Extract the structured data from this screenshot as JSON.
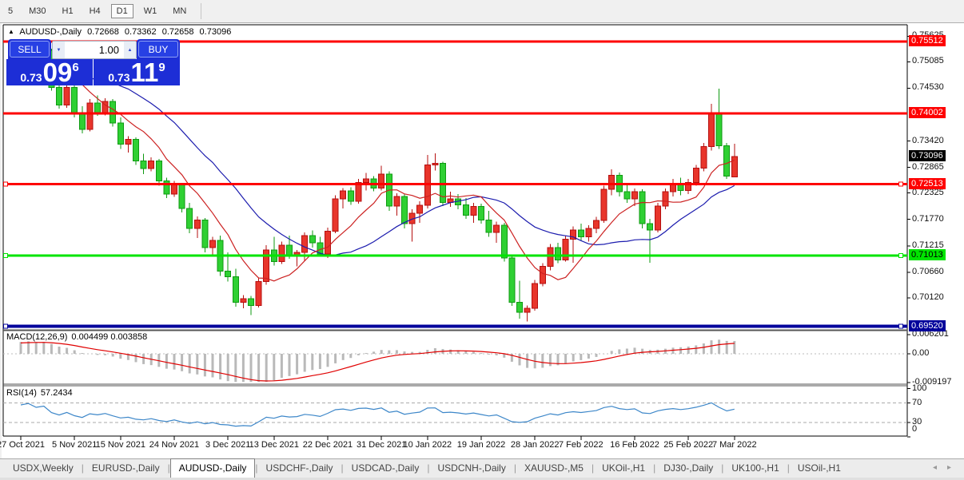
{
  "colors": {
    "bull": "#e8352b",
    "bull_border": "#b50f0f",
    "bear": "#2fd033",
    "bear_border": "#0f9a12",
    "ma_fast": "#cc2222",
    "ma_slow": "#1c1cae",
    "macd_hist": "#b9b9b9",
    "macd_signal": "#e00000",
    "rsi_line": "#3d87c9",
    "line_red": "#fe0000",
    "line_green": "#00e400",
    "line_navy": "#00009b",
    "panel_blue": "#1d2ed6"
  },
  "toolbar": {
    "timeframes": [
      "5",
      "M30",
      "H1",
      "H4",
      "D1",
      "W1",
      "MN"
    ],
    "active_timeframe": "D1"
  },
  "title": {
    "collapse_arrow": "▲",
    "symbol": "AUDUSD-,Daily",
    "open": "0.72668",
    "high": "0.73362",
    "low": "0.72658",
    "close": "0.73096"
  },
  "trade_panel": {
    "sell_label": "SELL",
    "buy_label": "BUY",
    "volume": "1.00",
    "spinner_down": "▼",
    "spinner_up": "▲",
    "sell_price": {
      "prefix": "0.73",
      "big": "09",
      "sup": "6"
    },
    "buy_price": {
      "prefix": "0.73",
      "big": "11",
      "sup": "9"
    }
  },
  "price_axis": {
    "labels": [
      {
        "value": 0.75625,
        "text": "0.75625"
      },
      {
        "value": 0.75085,
        "text": "0.75085"
      },
      {
        "value": 0.7453,
        "text": "0.74530"
      },
      {
        "value": 0.7342,
        "text": "0.73420"
      },
      {
        "value": 0.72865,
        "text": "0.72865"
      },
      {
        "value": 0.72325,
        "text": "0.72325"
      },
      {
        "value": 0.7177,
        "text": "0.71770"
      },
      {
        "value": 0.71215,
        "text": "0.71215"
      },
      {
        "value": 0.7066,
        "text": "0.70660"
      },
      {
        "value": 0.7012,
        "text": "0.70120"
      }
    ],
    "badges": [
      {
        "value": 0.75512,
        "text": "0.75512",
        "bg": "#fe0000",
        "fg": "#ffffff"
      },
      {
        "value": 0.74002,
        "text": "0.74002",
        "bg": "#fe0000",
        "fg": "#ffffff"
      },
      {
        "value": 0.73096,
        "text": "0.73096",
        "bg": "#000000",
        "fg": "#ffffff"
      },
      {
        "value": 0.72513,
        "text": "0.72513",
        "bg": "#fe0000",
        "fg": "#ffffff"
      },
      {
        "value": 0.71013,
        "text": "0.71013",
        "bg": "#00e400",
        "fg": "#000000"
      },
      {
        "value": 0.6952,
        "text": "0.69520",
        "bg": "#00009b",
        "fg": "#ffffff"
      }
    ]
  },
  "hlines": [
    {
      "value": 0.75512,
      "color": "#fe0000",
      "width": 3,
      "handles": false
    },
    {
      "value": 0.74002,
      "color": "#fe0000",
      "width": 3,
      "handles": false
    },
    {
      "value": 0.72513,
      "color": "#fe0000",
      "width": 3,
      "handles": true
    },
    {
      "value": 0.71013,
      "color": "#00e400",
      "width": 3,
      "handles": true
    },
    {
      "value": 0.6952,
      "color": "#00009b",
      "width": 4,
      "handles": true
    }
  ],
  "macd_panel": {
    "label": "MACD(12,26,9)",
    "values": "0.004499 0.003858",
    "params": {
      "fast": 12,
      "slow": 26,
      "signal": 9
    },
    "axis": [
      {
        "value": 0.006201,
        "text": "0.006201"
      },
      {
        "value": 0,
        "text": "0.00"
      },
      {
        "value": -0.009197,
        "text": "-0.009197"
      }
    ]
  },
  "rsi_panel": {
    "label": "RSI(14)",
    "value": "57.2434",
    "period": 14,
    "levels": [
      70,
      30
    ],
    "axis": [
      {
        "value": 100,
        "text": "100"
      },
      {
        "value": 70,
        "text": "70"
      },
      {
        "value": 30,
        "text": "30"
      },
      {
        "value": 0,
        "text": "0"
      }
    ]
  },
  "tabs": {
    "items": [
      "USDX,Weekly",
      "EURUSD-,Daily",
      "AUDUSD-,Daily",
      "USDCHF-,Daily",
      "USDCAD-,Daily",
      "USDCNH-,Daily",
      "XAUUSD-,M5",
      "UKOil-,H1",
      "DJ30-,Daily",
      "UK100-,H1",
      "USOil-,H1"
    ],
    "active": "AUDUSD-,Daily",
    "scroll_left": "◂",
    "scroll_right": "▸"
  },
  "chart_data": {
    "type": "candlestick",
    "symbol": "AUDUSD-",
    "timeframe": "Daily",
    "current_bar": {
      "open": 0.72668,
      "high": 0.73362,
      "low": 0.72658,
      "close": 0.73096
    },
    "support_resistance": [
      0.75512,
      0.74002,
      0.72513,
      0.71013,
      0.6952
    ],
    "indicators": {
      "macd": {
        "name": "MACD(12,26,9)",
        "main": 0.004499,
        "signal": 0.003858
      },
      "rsi": {
        "name": "RSI(14)",
        "value": 57.2434
      }
    },
    "date_labels": [
      {
        "index": 0,
        "label": "27 Oct 2021"
      },
      {
        "index": 7,
        "label": "5 Nov 2021"
      },
      {
        "index": 13,
        "label": "15 Nov 2021"
      },
      {
        "index": 20,
        "label": "24 Nov 2021"
      },
      {
        "index": 27,
        "label": "3 Dec 2021"
      },
      {
        "index": 33,
        "label": "13 Dec 2021"
      },
      {
        "index": 40,
        "label": "22 Dec 2021"
      },
      {
        "index": 47,
        "label": "31 Dec 2021"
      },
      {
        "index": 53,
        "label": "10 Jan 2022"
      },
      {
        "index": 60,
        "label": "19 Jan 2022"
      },
      {
        "index": 67,
        "label": "28 Jan 2022"
      },
      {
        "index": 73,
        "label": "7 Feb 2022"
      },
      {
        "index": 80,
        "label": "16 Feb 2022"
      },
      {
        "index": 87,
        "label": "25 Feb 2022"
      },
      {
        "index": 93,
        "label": "7 Mar 2022"
      }
    ],
    "candles": [
      [
        0.7496,
        0.754,
        0.7488,
        0.7522
      ],
      [
        0.7522,
        0.7555,
        0.7515,
        0.7548
      ],
      [
        0.7548,
        0.7552,
        0.7498,
        0.7512
      ],
      [
        0.7512,
        0.754,
        0.7482,
        0.7532
      ],
      [
        0.7532,
        0.7536,
        0.7448,
        0.7455
      ],
      [
        0.7455,
        0.747,
        0.741,
        0.7418
      ],
      [
        0.7418,
        0.7462,
        0.7412,
        0.7455
      ],
      [
        0.7455,
        0.746,
        0.7392,
        0.74
      ],
      [
        0.74,
        0.7415,
        0.7358,
        0.7366
      ],
      [
        0.7366,
        0.743,
        0.7362,
        0.7422
      ],
      [
        0.7422,
        0.7438,
        0.7395,
        0.7402
      ],
      [
        0.7402,
        0.7432,
        0.7396,
        0.7425
      ],
      [
        0.7425,
        0.743,
        0.7372,
        0.738
      ],
      [
        0.738,
        0.7392,
        0.7325,
        0.7335
      ],
      [
        0.7335,
        0.7352,
        0.7318,
        0.7345
      ],
      [
        0.7345,
        0.735,
        0.7292,
        0.73
      ],
      [
        0.73,
        0.7315,
        0.7272,
        0.7284
      ],
      [
        0.7284,
        0.7308,
        0.7278,
        0.73
      ],
      [
        0.73,
        0.7304,
        0.7248,
        0.7258
      ],
      [
        0.7258,
        0.7265,
        0.7222,
        0.723
      ],
      [
        0.723,
        0.7258,
        0.7224,
        0.725
      ],
      [
        0.725,
        0.7254,
        0.7192,
        0.72
      ],
      [
        0.72,
        0.7212,
        0.7148,
        0.7158
      ],
      [
        0.7158,
        0.7183,
        0.7138,
        0.7176
      ],
      [
        0.7176,
        0.718,
        0.7108,
        0.7118
      ],
      [
        0.7118,
        0.714,
        0.7103,
        0.7133
      ],
      [
        0.7133,
        0.7143,
        0.7058,
        0.7068
      ],
      [
        0.7068,
        0.7108,
        0.7046,
        0.7056
      ],
      [
        0.7056,
        0.7073,
        0.6993,
        0.7003
      ],
      [
        0.7003,
        0.7018,
        0.699,
        0.701
      ],
      [
        0.701,
        0.7016,
        0.6976,
        0.6996
      ],
      [
        0.6996,
        0.7053,
        0.6992,
        0.7046
      ],
      [
        0.7046,
        0.7123,
        0.704,
        0.7113
      ],
      [
        0.7113,
        0.714,
        0.708,
        0.7088
      ],
      [
        0.7088,
        0.713,
        0.7083,
        0.7123
      ],
      [
        0.7123,
        0.7143,
        0.7094,
        0.7102
      ],
      [
        0.7102,
        0.7113,
        0.7078,
        0.7108
      ],
      [
        0.7108,
        0.715,
        0.709,
        0.7143
      ],
      [
        0.7143,
        0.7154,
        0.7118,
        0.7128
      ],
      [
        0.7128,
        0.714,
        0.7098,
        0.7104
      ],
      [
        0.7104,
        0.716,
        0.7096,
        0.7152
      ],
      [
        0.7152,
        0.7228,
        0.7148,
        0.722
      ],
      [
        0.722,
        0.7243,
        0.72,
        0.7237
      ],
      [
        0.7237,
        0.7245,
        0.7208,
        0.7215
      ],
      [
        0.7215,
        0.7262,
        0.721,
        0.7255
      ],
      [
        0.7255,
        0.7275,
        0.7238,
        0.7262
      ],
      [
        0.7262,
        0.7268,
        0.7236,
        0.7243
      ],
      [
        0.7243,
        0.729,
        0.7238,
        0.7272
      ],
      [
        0.7272,
        0.7278,
        0.7195,
        0.7205
      ],
      [
        0.7205,
        0.7232,
        0.7185,
        0.7225
      ],
      [
        0.7225,
        0.723,
        0.7158,
        0.7168
      ],
      [
        0.7168,
        0.7198,
        0.713,
        0.719
      ],
      [
        0.719,
        0.7215,
        0.717,
        0.7207
      ],
      [
        0.7207,
        0.7313,
        0.72,
        0.7292
      ],
      [
        0.7292,
        0.7316,
        0.728,
        0.7295
      ],
      [
        0.7295,
        0.7298,
        0.7205,
        0.7213
      ],
      [
        0.7213,
        0.7235,
        0.7203,
        0.722
      ],
      [
        0.722,
        0.723,
        0.7198,
        0.7208
      ],
      [
        0.7208,
        0.7222,
        0.7178,
        0.7186
      ],
      [
        0.7186,
        0.7212,
        0.717,
        0.7204
      ],
      [
        0.7204,
        0.721,
        0.7168,
        0.7176
      ],
      [
        0.7176,
        0.7195,
        0.714,
        0.715
      ],
      [
        0.715,
        0.7172,
        0.7128,
        0.7165
      ],
      [
        0.7165,
        0.717,
        0.7088,
        0.7096
      ],
      [
        0.7096,
        0.71,
        0.6995,
        0.7003
      ],
      [
        0.7003,
        0.7048,
        0.6968,
        0.6982
      ],
      [
        0.6982,
        0.6996,
        0.6962,
        0.699
      ],
      [
        0.699,
        0.705,
        0.6985,
        0.7042
      ],
      [
        0.7042,
        0.7085,
        0.7036,
        0.7078
      ],
      [
        0.7078,
        0.7125,
        0.707,
        0.7118
      ],
      [
        0.7118,
        0.7128,
        0.7085,
        0.7092
      ],
      [
        0.7092,
        0.7142,
        0.7088,
        0.7135
      ],
      [
        0.7135,
        0.7162,
        0.7086,
        0.7155
      ],
      [
        0.7155,
        0.7168,
        0.7132,
        0.714
      ],
      [
        0.714,
        0.7165,
        0.713,
        0.7158
      ],
      [
        0.7158,
        0.7182,
        0.7148,
        0.7175
      ],
      [
        0.7175,
        0.7248,
        0.717,
        0.724
      ],
      [
        0.724,
        0.7282,
        0.7228,
        0.727
      ],
      [
        0.727,
        0.7276,
        0.7225,
        0.7235
      ],
      [
        0.7235,
        0.7252,
        0.7212,
        0.722
      ],
      [
        0.722,
        0.7242,
        0.7205,
        0.7235
      ],
      [
        0.7235,
        0.724,
        0.7158,
        0.7168
      ],
      [
        0.7168,
        0.7178,
        0.7086,
        0.7155
      ],
      [
        0.7155,
        0.7212,
        0.715,
        0.7205
      ],
      [
        0.7205,
        0.7242,
        0.7198,
        0.7235
      ],
      [
        0.7235,
        0.7262,
        0.7225,
        0.7252
      ],
      [
        0.7252,
        0.7265,
        0.7228,
        0.7238
      ],
      [
        0.7238,
        0.7262,
        0.723,
        0.7255
      ],
      [
        0.7255,
        0.7292,
        0.7248,
        0.7285
      ],
      [
        0.7285,
        0.7338,
        0.7278,
        0.733
      ],
      [
        0.733,
        0.742,
        0.7322,
        0.7398
      ],
      [
        0.7398,
        0.7452,
        0.7325,
        0.7332
      ],
      [
        0.7332,
        0.7338,
        0.7262,
        0.7268
      ],
      [
        0.72668,
        0.73362,
        0.72658,
        0.73096
      ]
    ]
  }
}
